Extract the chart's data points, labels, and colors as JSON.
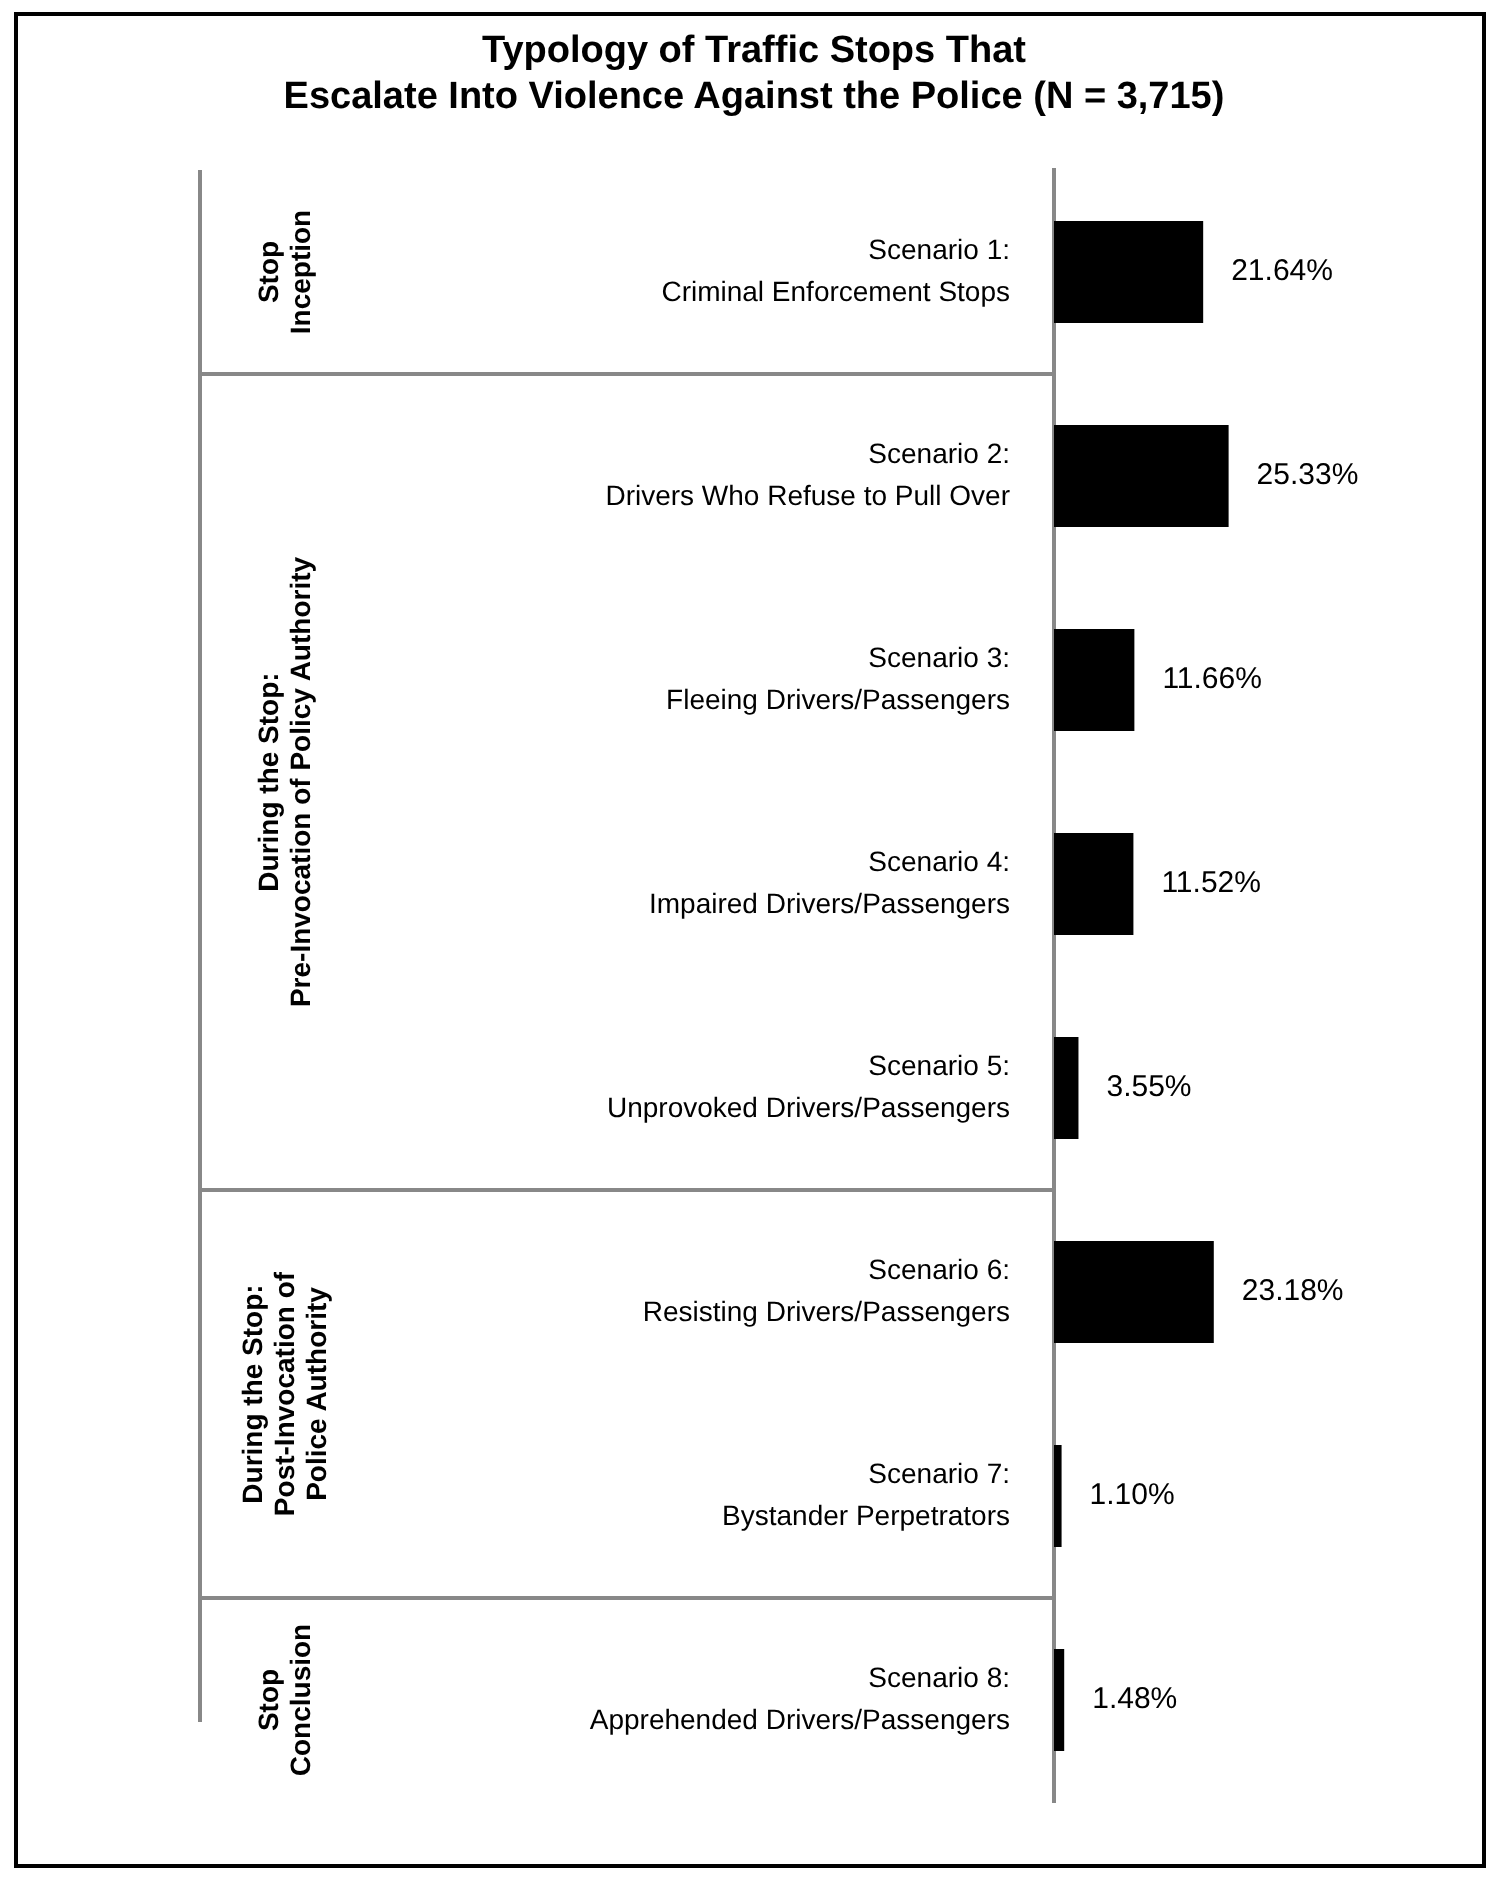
{
  "chart_data": {
    "type": "bar",
    "orientation": "horizontal",
    "title": "Typology of Traffic Stops That\nEscalate Into Violence Against the Police (N = 3,715)",
    "categories": [
      "Scenario 1:\nCriminal Enforcement Stops",
      "Scenario 2:\nDrivers Who Refuse to Pull Over",
      "Scenario 3:\nFleeing Drivers/Passengers",
      "Scenario 4:\nImpaired Drivers/Passengers",
      "Scenario 5:\nUnprovoked Drivers/Passengers",
      "Scenario 6:\nResisting Drivers/Passengers",
      "Scenario 7:\nBystander Perpetrators",
      "Scenario 8:\nApprehended Drivers/Passengers"
    ],
    "values": [
      21.64,
      25.33,
      11.66,
      11.52,
      3.55,
      23.18,
      1.1,
      1.48
    ],
    "value_labels": [
      "21.64%",
      "25.33%",
      "11.66%",
      "11.52%",
      "3.55%",
      "23.18%",
      "1.10%",
      "1.48%"
    ],
    "color": "#000000",
    "annotations": [
      "Stop\nInception",
      "During the Stop:\nPre-Invocation of Policy Authority",
      "During the Stop:\nPost-Invocation of\nPolice Authority",
      "Stop\nConclusion"
    ],
    "grid": false,
    "legend": false
  }
}
